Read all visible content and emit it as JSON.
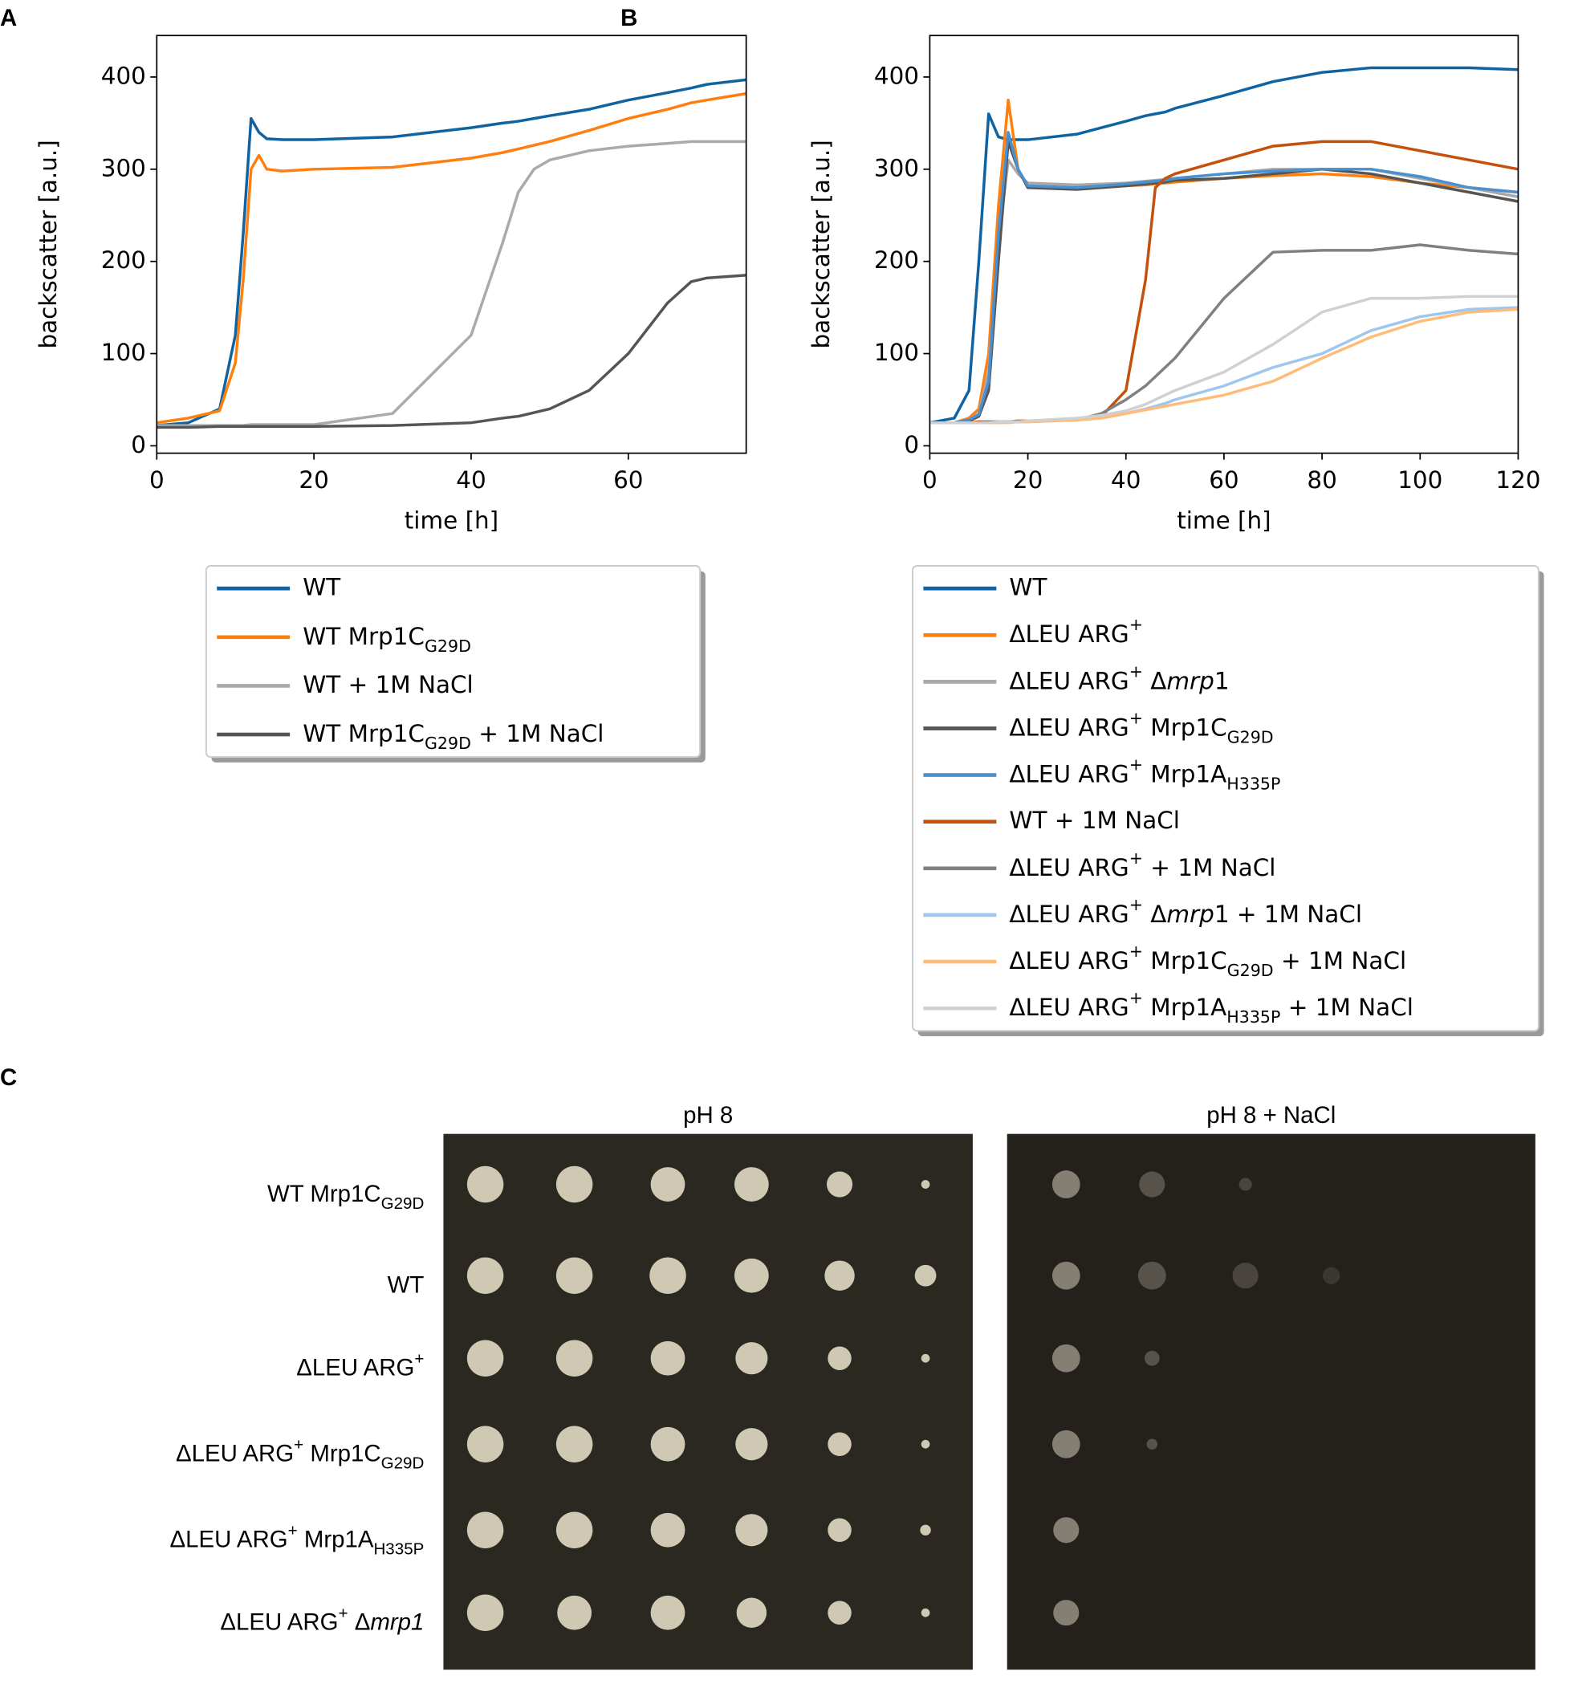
{
  "chart_data": [
    {
      "type": "line",
      "panel_label": "A",
      "xlabel": "time [h]",
      "ylabel": "backscatter [a.u.]",
      "xlim": [
        0,
        75
      ],
      "ylim": [
        -8,
        445
      ],
      "xticks": [
        0,
        20,
        40,
        60
      ],
      "yticks": [
        0,
        100,
        200,
        300,
        400
      ],
      "legend": "below",
      "x": [
        0,
        4,
        8,
        10,
        11,
        12,
        13,
        14,
        16,
        20,
        30,
        40,
        44,
        46,
        48,
        50,
        55,
        60,
        65,
        68,
        70,
        75
      ],
      "series": [
        {
          "name": "WT",
          "color": "#0f63a0",
          "values": [
            22,
            25,
            40,
            120,
            230,
            355,
            340,
            333,
            332,
            332,
            335,
            345,
            350,
            352,
            355,
            358,
            365,
            375,
            383,
            388,
            392,
            397
          ]
        },
        {
          "name": [
            "WT Mrp1C",
            {
              "sub": "G29D"
            }
          ],
          "color": "#ff7f0e",
          "values": [
            25,
            30,
            38,
            90,
            180,
            300,
            315,
            300,
            298,
            300,
            302,
            312,
            318,
            322,
            326,
            330,
            342,
            355,
            365,
            372,
            375,
            382
          ]
        },
        {
          "name": "WT + 1M NaCl",
          "color": "#aaaaaa",
          "values": [
            22,
            22,
            22,
            22,
            22,
            23,
            23,
            23,
            23,
            23,
            35,
            120,
            220,
            275,
            300,
            310,
            320,
            325,
            328,
            330,
            330,
            330
          ]
        },
        {
          "name": [
            "WT Mrp1C",
            {
              "sub": "G29D"
            },
            " + 1M NaCl"
          ],
          "color": "#555555",
          "values": [
            20,
            20,
            21,
            21,
            21,
            21,
            21,
            21,
            21,
            21,
            22,
            25,
            30,
            32,
            36,
            40,
            60,
            100,
            155,
            178,
            182,
            185
          ]
        }
      ]
    },
    {
      "type": "line",
      "panel_label": "B",
      "xlabel": "time [h]",
      "ylabel": "backscatter [a.u.]",
      "xlim": [
        0,
        120
      ],
      "ylim": [
        -8,
        445
      ],
      "xticks": [
        0,
        20,
        40,
        60,
        80,
        100,
        120
      ],
      "yticks": [
        0,
        100,
        200,
        300,
        400
      ],
      "legend": "below",
      "x": [
        0,
        5,
        8,
        10,
        12,
        14,
        16,
        18,
        20,
        30,
        35,
        40,
        44,
        46,
        48,
        50,
        60,
        70,
        80,
        90,
        100,
        110,
        120
      ],
      "series": [
        {
          "name": "WT",
          "color": "#0f63a0",
          "values": [
            25,
            30,
            60,
            200,
            360,
            335,
            332,
            332,
            332,
            338,
            345,
            352,
            358,
            360,
            362,
            366,
            380,
            395,
            405,
            410,
            410,
            410,
            408
          ]
        },
        {
          "name": [
            "ΔLEU ARG",
            {
              "sup": "+"
            }
          ],
          "color": "#ff7f0e",
          "values": [
            25,
            25,
            30,
            40,
            100,
            260,
            375,
            300,
            280,
            280,
            281,
            282,
            283,
            284,
            285,
            286,
            290,
            293,
            295,
            292,
            285,
            280,
            275
          ]
        },
        {
          "name": [
            "ΔLEU ARG",
            {
              "sup": "+"
            },
            " Δ",
            {
              "it": "mrp"
            },
            "1"
          ],
          "color": "#a8a8a8",
          "values": [
            25,
            25,
            28,
            35,
            80,
            220,
            310,
            295,
            285,
            283,
            284,
            285,
            287,
            288,
            289,
            290,
            295,
            300,
            300,
            300,
            290,
            280,
            270
          ]
        },
        {
          "name": [
            "ΔLEU ARG",
            {
              "sup": "+"
            },
            " Mrp1C",
            {
              "sub": "G29D"
            }
          ],
          "color": "#555555",
          "values": [
            25,
            25,
            27,
            32,
            60,
            200,
            330,
            300,
            280,
            278,
            280,
            282,
            284,
            285,
            286,
            288,
            290,
            295,
            300,
            295,
            285,
            275,
            265
          ]
        },
        {
          "name": [
            "ΔLEU ARG",
            {
              "sup": "+"
            },
            " Mrp1A",
            {
              "sub": "H335P"
            }
          ],
          "color": "#4a90d0",
          "values": [
            25,
            25,
            28,
            34,
            70,
            230,
            340,
            300,
            282,
            280,
            282,
            284,
            286,
            287,
            288,
            290,
            295,
            298,
            300,
            300,
            292,
            280,
            275
          ]
        },
        {
          "name": "WT + 1M NaCl",
          "color": "#c4500c",
          "values": [
            25,
            25,
            25,
            26,
            26,
            26,
            26,
            27,
            27,
            28,
            32,
            60,
            180,
            280,
            290,
            295,
            310,
            325,
            330,
            330,
            320,
            310,
            300
          ]
        },
        {
          "name": [
            "ΔLEU ARG",
            {
              "sup": "+"
            },
            " + 1M NaCl"
          ],
          "color": "#808080",
          "values": [
            25,
            25,
            25,
            25,
            26,
            26,
            26,
            26,
            27,
            28,
            35,
            50,
            65,
            75,
            85,
            95,
            160,
            210,
            212,
            212,
            218,
            212,
            208
          ]
        },
        {
          "name": [
            "ΔLEU ARG",
            {
              "sup": "+"
            },
            " Δ",
            {
              "it": "mrp"
            },
            "1 + 1M NaCl"
          ],
          "color": "#9ec7ef",
          "values": [
            25,
            25,
            25,
            25,
            25,
            25,
            26,
            26,
            26,
            28,
            30,
            35,
            40,
            43,
            46,
            50,
            65,
            85,
            100,
            125,
            140,
            148,
            150
          ]
        },
        {
          "name": [
            "ΔLEU ARG",
            {
              "sup": "+"
            },
            " Mrp1C",
            {
              "sub": "G29D"
            },
            " + 1M NaCl"
          ],
          "color": "#ffbb78",
          "values": [
            25,
            25,
            25,
            25,
            25,
            25,
            25,
            26,
            26,
            28,
            30,
            35,
            39,
            41,
            43,
            45,
            55,
            70,
            95,
            118,
            135,
            145,
            148
          ]
        },
        {
          "name": [
            "ΔLEU ARG",
            {
              "sup": "+"
            },
            " Mrp1A",
            {
              "sub": "H335P"
            },
            " + 1M NaCl"
          ],
          "color": "#d0d0d0",
          "values": [
            25,
            25,
            25,
            25,
            25,
            26,
            26,
            26,
            27,
            30,
            33,
            38,
            45,
            50,
            55,
            60,
            80,
            110,
            145,
            160,
            160,
            162,
            162
          ]
        }
      ]
    }
  ],
  "panel_c": {
    "label": "C",
    "columns": [
      "pH 8",
      "pH 8 + NaCl"
    ],
    "rows": [
      [
        "WT Mrp1C",
        {
          "sub": "G29D"
        }
      ],
      [
        "WT"
      ],
      [
        "ΔLEU ARG",
        {
          "sup": "+"
        }
      ],
      [
        "ΔLEU ARG",
        {
          "sup": "+"
        },
        " Mrp1C",
        {
          "sub": "G29D"
        }
      ],
      [
        "ΔLEU ARG",
        {
          "sup": "+"
        },
        " Mrp1A",
        {
          "sub": "H335P"
        }
      ],
      [
        "ΔLEU ARG",
        {
          "sup": "+"
        },
        " Δ",
        {
          "it": "mrp1"
        }
      ]
    ]
  }
}
